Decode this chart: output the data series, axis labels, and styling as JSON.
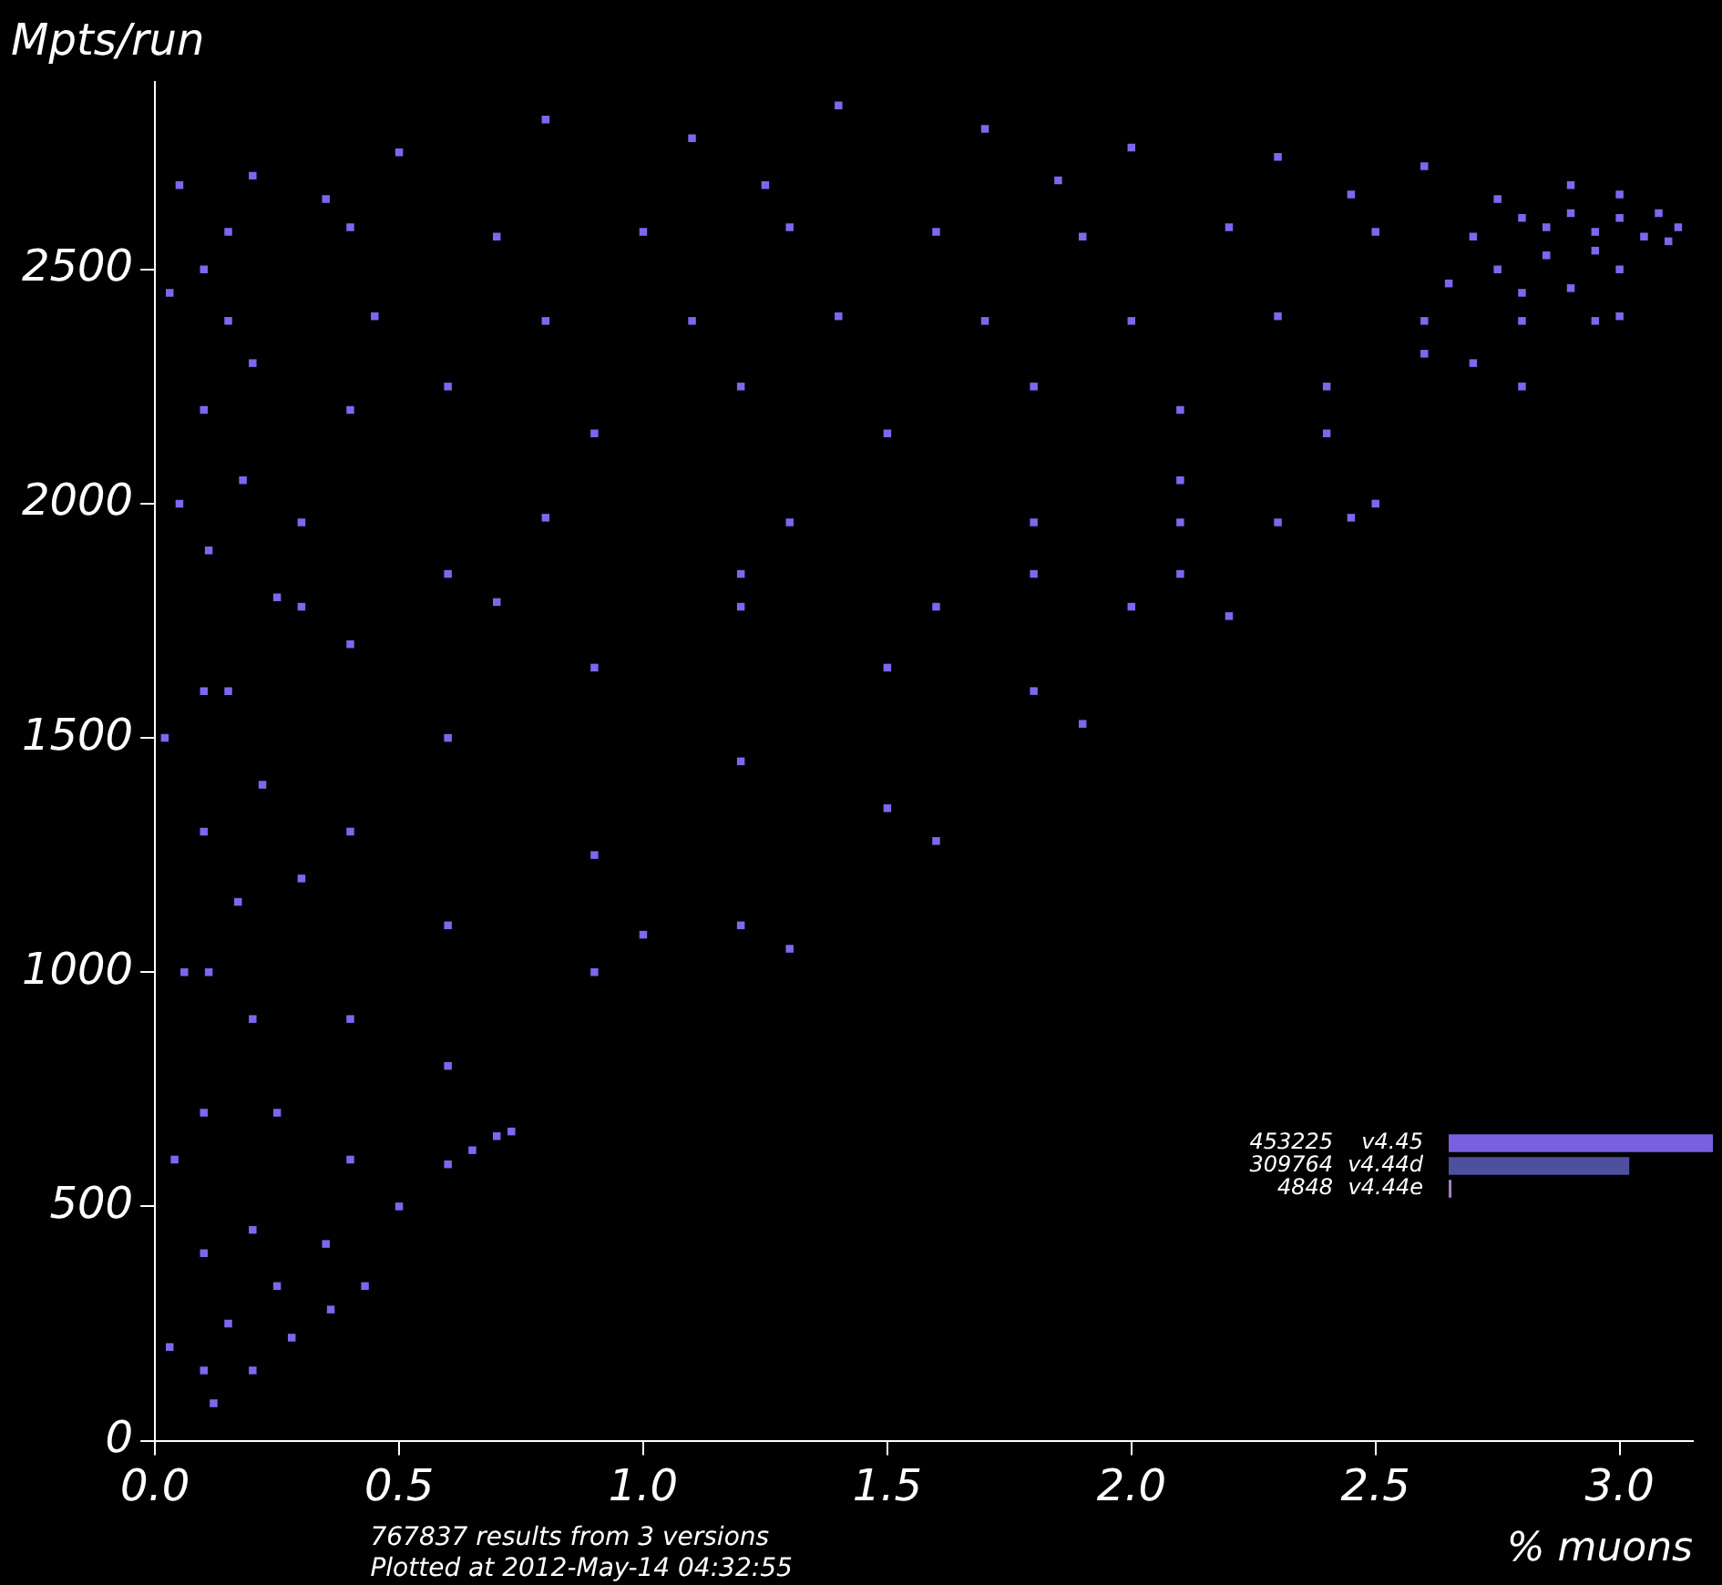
{
  "chart_data": [
    {
      "type": "scatter",
      "xlabel": "% muons",
      "ylabel": "Mpts/run",
      "annotations": [
        "767837 results from 3 versions",
        "Plotted at 2012-May-14 04:32:55"
      ],
      "xlim": [
        0,
        3.15
      ],
      "ylim": [
        0,
        2900
      ],
      "xticks": [
        {
          "value": 0,
          "label": "0.0"
        },
        0.5,
        {
          "value": 1,
          "label": "1.0"
        },
        1.5,
        {
          "value": 2,
          "label": "2.0"
        },
        2.5,
        {
          "value": 3,
          "label": "3.0"
        }
      ],
      "yticks": [
        0,
        500,
        1000,
        1500,
        2000,
        2500
      ],
      "marker": "square",
      "series": [
        {
          "color": "#7b68ee",
          "x": [
            0.15,
            0.4,
            0.7,
            1.0,
            1.3,
            1.6,
            1.9,
            2.2,
            2.5,
            2.7,
            2.85,
            2.95,
            3.05,
            3.12,
            3.1,
            3.08,
            3.0,
            2.9,
            2.8,
            2.95,
            2.85,
            2.75,
            3.0,
            2.9,
            2.8,
            2.65,
            0.15,
            0.45,
            0.8,
            1.1,
            1.4,
            1.7,
            2.0,
            2.3,
            2.6,
            2.8,
            2.95,
            0.3,
            0.8,
            1.3,
            1.8,
            2.1,
            2.3,
            2.45,
            0.3,
            0.7,
            1.2,
            1.6,
            2.0,
            0.05,
            0.2,
            0.35,
            0.5,
            0.8,
            1.1,
            1.25,
            1.4,
            1.7,
            1.85,
            2.0,
            2.3,
            2.45,
            2.6,
            2.75,
            2.9,
            3.0,
            0.03,
            0.05,
            0.02,
            0.06,
            0.04,
            0.03,
            0.1,
            0.1,
            0.11,
            0.1,
            0.1,
            0.11,
            0.1,
            0.1,
            0.1,
            0.2,
            0.18,
            0.25,
            0.15,
            0.22,
            0.3,
            0.17,
            0.2,
            0.25,
            0.4,
            0.4,
            0.4,
            0.4,
            0.4,
            0.6,
            0.6,
            0.6,
            0.6,
            0.6,
            0.9,
            0.9,
            0.9,
            0.9,
            1.2,
            1.2,
            1.2,
            1.2,
            1.5,
            1.5,
            1.5,
            1.8,
            1.8,
            1.8,
            2.1,
            2.1,
            2.1,
            2.4,
            2.4,
            2.7,
            2.6,
            1.0,
            1.3,
            1.6,
            1.9,
            2.2,
            2.5,
            2.8,
            3.0,
            0.12,
            0.2,
            0.28,
            0.36,
            0.43,
            0.15,
            0.25,
            0.35,
            0.5,
            0.2,
            0.6,
            0.65,
            0.7,
            0.73
          ],
          "values": [
            2580,
            2590,
            2570,
            2580,
            2590,
            2580,
            2570,
            2590,
            2580,
            2570,
            2590,
            2580,
            2570,
            2590,
            2560,
            2620,
            2610,
            2620,
            2610,
            2540,
            2530,
            2500,
            2500,
            2460,
            2450,
            2470,
            2390,
            2400,
            2390,
            2390,
            2400,
            2390,
            2390,
            2400,
            2390,
            2390,
            2390,
            1960,
            1970,
            1960,
            1960,
            1960,
            1960,
            1970,
            1780,
            1790,
            1780,
            1780,
            1780,
            2680,
            2700,
            2650,
            2750,
            2820,
            2780,
            2680,
            2850,
            2800,
            2690,
            2760,
            2740,
            2660,
            2720,
            2650,
            2680,
            2660,
            2450,
            2000,
            1500,
            1000,
            600,
            200,
            2500,
            2200,
            1900,
            1600,
            1300,
            1000,
            700,
            400,
            150,
            2300,
            2050,
            1800,
            1600,
            1400,
            1200,
            1150,
            900,
            700,
            2200,
            1700,
            1300,
            900,
            600,
            2250,
            1850,
            1500,
            1100,
            800,
            2150,
            1650,
            1250,
            1000,
            2250,
            1850,
            1450,
            1100,
            2150,
            1650,
            1350,
            2250,
            1850,
            1600,
            2200,
            2050,
            1850,
            2250,
            2150,
            2300,
            2320,
            1080,
            1050,
            1280,
            1530,
            1760,
            2000,
            2250,
            2400,
            80,
            150,
            220,
            280,
            330,
            250,
            330,
            420,
            500,
            450,
            590,
            620,
            650,
            660
          ]
        }
      ]
    },
    {
      "type": "bar",
      "orientation": "horizontal",
      "categories": [
        "v4.45",
        "v4.44d",
        "v4.44e"
      ],
      "values": [
        453225,
        309764,
        4848
      ],
      "colors": [
        "#7860e0",
        "#4f4fa0",
        "#a080c0"
      ],
      "data_labels": true,
      "tick_labels": "y"
    }
  ]
}
